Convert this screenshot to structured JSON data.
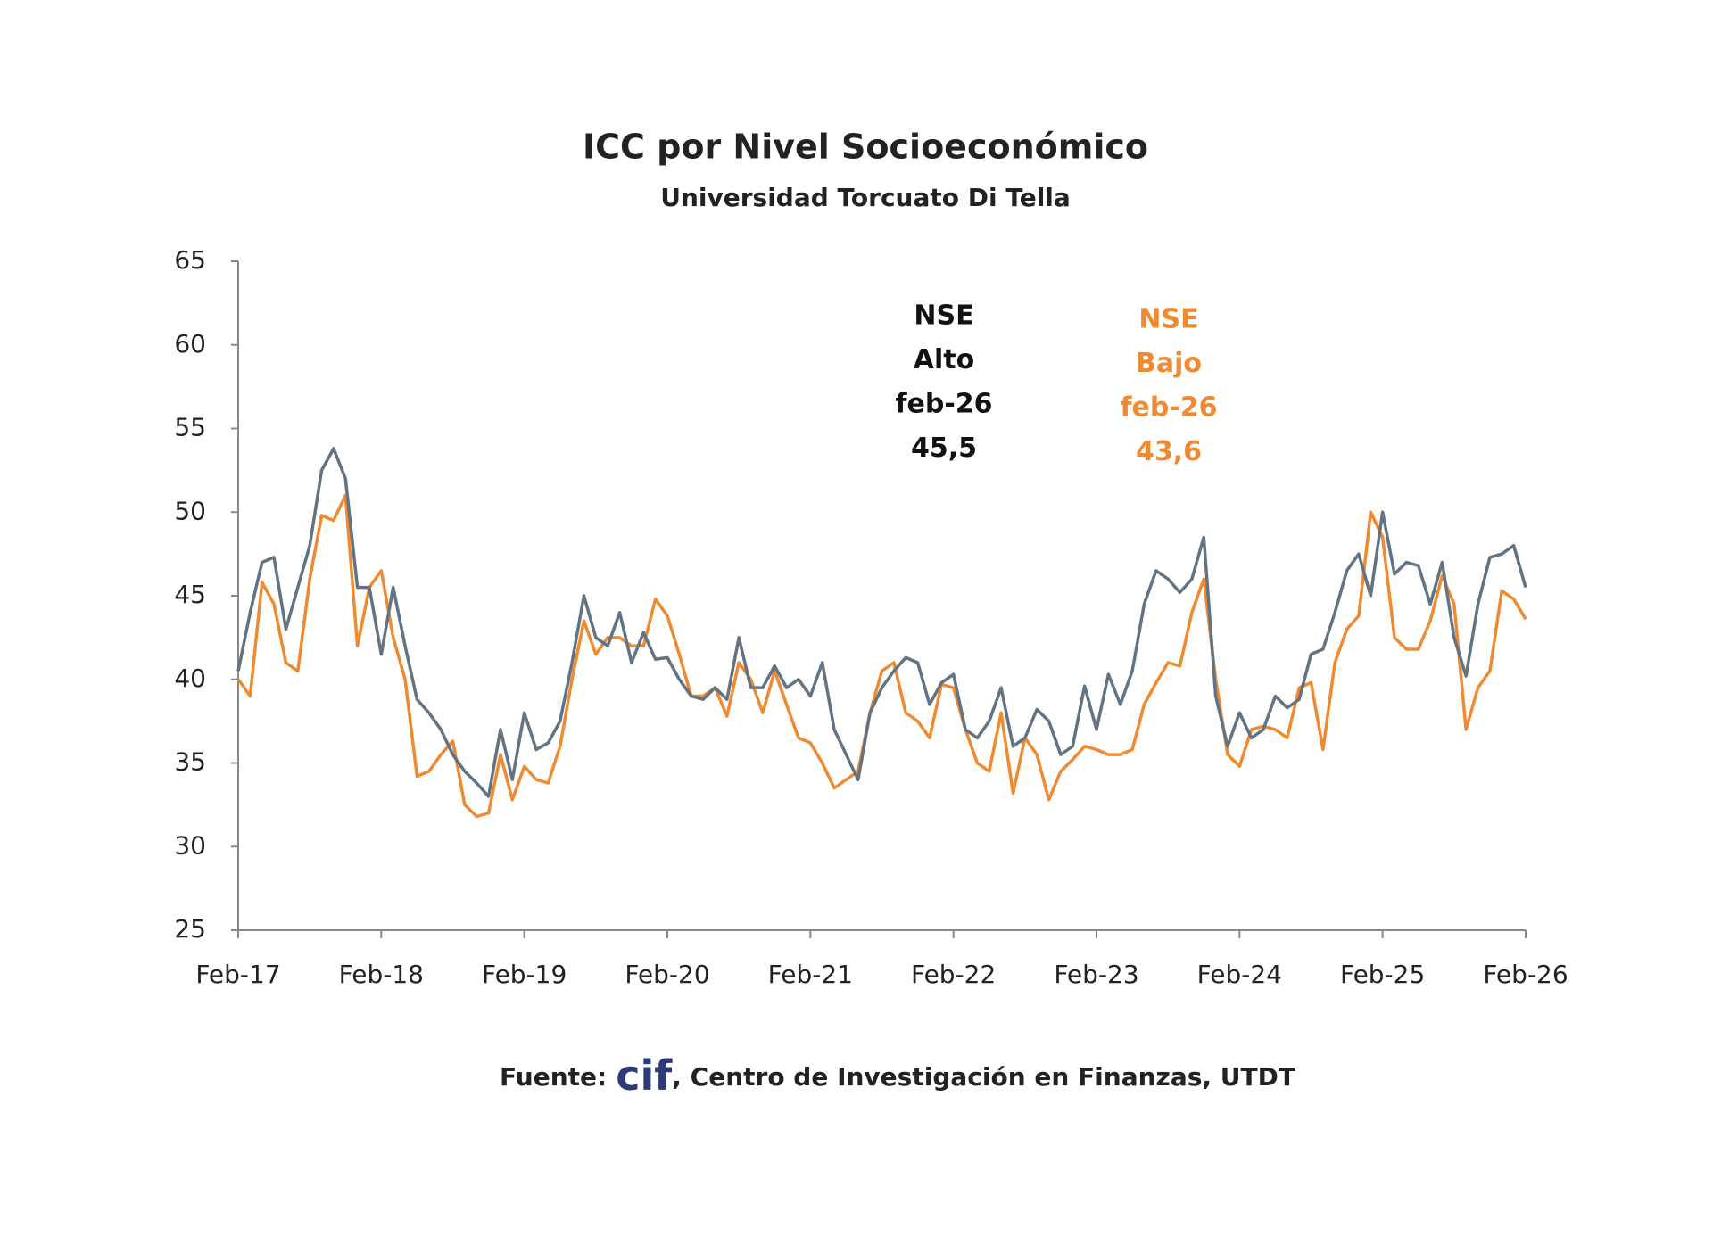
{
  "chart_data": {
    "type": "line",
    "title": "ICC por Nivel Socioeconómico",
    "subtitle": "Universidad Torcuato Di Tella",
    "categories": [
      "Feb-17",
      null,
      null,
      null,
      null,
      null,
      null,
      null,
      null,
      null,
      null,
      null,
      "Feb-18",
      null,
      null,
      null,
      null,
      null,
      null,
      null,
      null,
      null,
      null,
      null,
      "Feb-19",
      null,
      null,
      null,
      null,
      null,
      null,
      null,
      null,
      null,
      null,
      null,
      "Feb-20",
      null,
      null,
      null,
      null,
      null,
      null,
      null,
      null,
      null,
      null,
      null,
      "Feb-21",
      null,
      null,
      null,
      null,
      null,
      null,
      null,
      null,
      null,
      null,
      null,
      "Feb-22",
      null,
      null,
      null,
      null,
      null,
      null,
      null,
      null,
      null,
      null,
      null,
      "Feb-23",
      null,
      null,
      null,
      null,
      null,
      null,
      null,
      null,
      null,
      null,
      null,
      "Feb-24",
      null,
      null,
      null,
      null,
      null,
      null,
      null,
      null,
      null,
      null,
      null,
      "Feb-25",
      null,
      null,
      null,
      null,
      null,
      null,
      null,
      null,
      null,
      null,
      null,
      "Feb-26"
    ],
    "series": [
      {
        "name": "NSE Alto",
        "color": "#627384",
        "values": [
          40.5,
          44,
          47,
          47.3,
          43,
          45.5,
          48,
          52.5,
          53.8,
          52,
          45.5,
          45.5,
          41.5,
          45.5,
          42,
          38.8,
          38,
          37,
          35.5,
          34.5,
          33.8,
          33,
          37,
          34,
          38,
          35.8,
          36.2,
          37.5,
          41,
          45,
          42.5,
          42,
          44,
          41,
          42.8,
          41.2,
          41.3,
          40,
          39,
          38.8,
          39.5,
          38.8,
          42.5,
          39.5,
          39.5,
          40.8,
          39.5,
          40,
          39,
          41,
          37,
          35.5,
          34,
          38,
          39.5,
          40.5,
          41.3,
          41,
          38.5,
          39.8,
          40.3,
          37,
          36.5,
          37.5,
          39.5,
          36,
          36.5,
          38.2,
          37.5,
          35.5,
          36,
          39.6,
          37,
          40.3,
          38.5,
          40.5,
          44.5,
          46.5,
          46,
          45.2,
          46,
          48.5,
          39,
          36,
          38,
          36.5,
          37,
          39,
          38.3,
          38.8,
          41.5,
          41.8,
          44,
          46.5,
          47.5,
          45,
          50,
          46.3,
          47,
          46.8,
          44.5,
          47,
          42.5,
          40.2,
          44.5,
          47.3,
          47.5,
          48,
          45.5
        ]
      },
      {
        "name": "NSE Bajo",
        "color": "#f08a30",
        "values": [
          40,
          39,
          45.8,
          44.5,
          41,
          40.5,
          46,
          49.8,
          49.5,
          51,
          42,
          45.5,
          46.5,
          42.5,
          40,
          34.2,
          34.5,
          35.5,
          36.3,
          32.5,
          31.8,
          32,
          35.5,
          32.8,
          34.8,
          34,
          33.8,
          36,
          40,
          43.5,
          41.5,
          42.5,
          42.5,
          42,
          42,
          44.8,
          43.8,
          41.5,
          39,
          39,
          39.5,
          37.8,
          41,
          40,
          38,
          40.5,
          38.5,
          36.5,
          36.2,
          35,
          33.5,
          34,
          34.5,
          38,
          40.5,
          41,
          38,
          37.5,
          36.5,
          39.7,
          39.5,
          37,
          35,
          34.5,
          38,
          33.2,
          36.5,
          35.5,
          32.8,
          34.5,
          35.2,
          36,
          35.8,
          35.5,
          35.5,
          35.8,
          38.5,
          39.8,
          41,
          40.8,
          44,
          46,
          40,
          35.5,
          34.8,
          37,
          37.2,
          37,
          36.5,
          39.5,
          39.8,
          35.8,
          41,
          43,
          43.8,
          50,
          48.5,
          42.5,
          41.8,
          41.8,
          43.5,
          46.2,
          44.5,
          37,
          39.5,
          40.5,
          45.3,
          44.8,
          43.6
        ]
      }
    ],
    "ylim": [
      25,
      65
    ],
    "yticks": [
      25,
      30,
      35,
      40,
      45,
      50,
      55,
      60,
      65
    ],
    "grid": false,
    "annotations": [
      {
        "lines": [
          "NSE",
          "Alto",
          "feb-26",
          "45,5"
        ],
        "color": "#111111"
      },
      {
        "lines": [
          "NSE",
          "Bajo",
          "feb-26",
          "43,6"
        ],
        "color": "#f08a30"
      }
    ],
    "source": {
      "prefix": "Fuente:",
      "logo": "cif",
      "text": ", Centro de Investigación en Finanzas, UTDT"
    }
  }
}
